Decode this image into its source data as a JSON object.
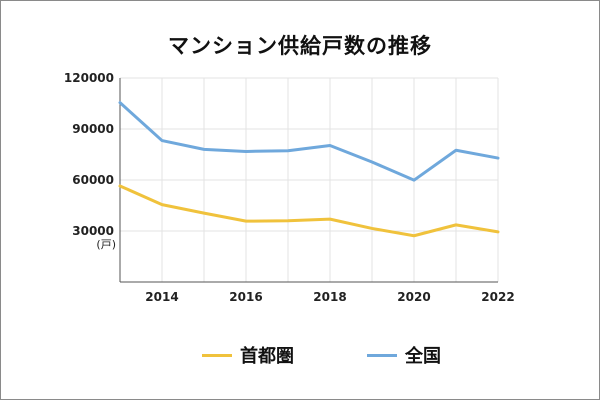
{
  "chart_data": {
    "type": "line",
    "title": "マンション供給戸数の推移",
    "unit_label": "(戸)",
    "x": [
      2013,
      2014,
      2015,
      2016,
      2017,
      2018,
      2019,
      2020,
      2021,
      2022
    ],
    "xticks": [
      "2014",
      "2016",
      "2018",
      "2020",
      "2022"
    ],
    "yticks": [
      "30000",
      "60000",
      "90000",
      "120000"
    ],
    "xlim": [
      2013,
      2022
    ],
    "ylim": [
      0,
      120000
    ],
    "grid": true,
    "legend_position": "bottom",
    "series": [
      {
        "name": "首都圏",
        "color": "#f0c23c",
        "values": [
          56500,
          45500,
          40500,
          35800,
          36000,
          37000,
          31500,
          27200,
          33600,
          29500
        ]
      },
      {
        "name": "全国",
        "color": "#6fa8dc",
        "values": [
          105500,
          83200,
          78000,
          76800,
          77200,
          80300,
          70600,
          59900,
          77500,
          72900
        ]
      }
    ]
  }
}
